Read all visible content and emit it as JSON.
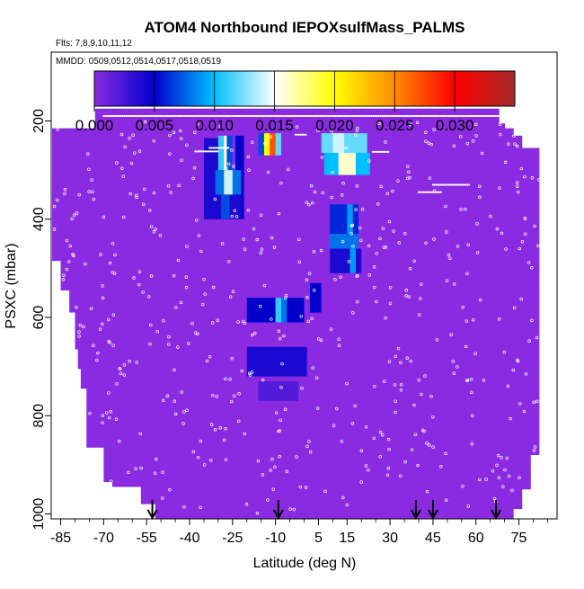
{
  "chart_data": {
    "type": "heatmap",
    "title": "ATOM4 Northbound IEPOXsulfMass_PALMS",
    "flights_label": "Flts: 7,8,9,10,11,12",
    "dates_label": "MMDD: 0509,0512,0514,0517,0518,0519",
    "xlabel": "Latitude (deg N)",
    "ylabel": "PSXC (mbar)",
    "xlim": [
      -88,
      88
    ],
    "ylim": [
      1010,
      60
    ],
    "x_ticks": [
      -85,
      -70,
      -55,
      -40,
      -25,
      -10,
      5,
      15,
      30,
      45,
      60,
      75
    ],
    "x_minor_ticks": [
      -80,
      -75,
      -65,
      -60,
      -50,
      -45,
      -35,
      -30,
      -20,
      -15,
      -5,
      0,
      10,
      20,
      25,
      35,
      40,
      50,
      55,
      65,
      70,
      80,
      85
    ],
    "y_ticks": [
      200,
      400,
      600,
      800,
      1000
    ],
    "colorbar": {
      "range": [
        0,
        0.035
      ],
      "tick_values": [
        0.0,
        0.005,
        0.01,
        0.015,
        0.02,
        0.025,
        0.03
      ],
      "tick_labels": [
        "0.000",
        "0.005",
        "0.010",
        "0.015",
        "0.020",
        "0.025",
        "0.030"
      ],
      "colors": [
        "#8A2BE2",
        "#0000CD",
        "#00BFFF",
        "#FFFFFF",
        "#FFFF00",
        "#FF8C00",
        "#FF0000",
        "#A52A2A"
      ]
    },
    "background_value": 0.0,
    "coverage": [
      {
        "lat": [
          -88,
          -85
        ],
        "p": [
          215,
          485
        ]
      },
      {
        "lat": [
          -85,
          -82
        ],
        "p": [
          215,
          545
        ]
      },
      {
        "lat": [
          -82,
          -80
        ],
        "p": [
          215,
          590
        ]
      },
      {
        "lat": [
          -80,
          -79
        ],
        "p": [
          215,
          665
        ]
      },
      {
        "lat": [
          -79,
          -78
        ],
        "p": [
          215,
          705
        ]
      },
      {
        "lat": [
          -78,
          -76
        ],
        "p": [
          215,
          745
        ]
      },
      {
        "lat": [
          -76,
          -73
        ],
        "p": [
          215,
          865
        ]
      },
      {
        "lat": [
          -73,
          -70
        ],
        "p": [
          175,
          865
        ]
      },
      {
        "lat": [
          -70,
          -67
        ],
        "p": [
          175,
          935
        ]
      },
      {
        "lat": [
          -67,
          -57
        ],
        "p": [
          175,
          945
        ]
      },
      {
        "lat": [
          -57,
          -52
        ],
        "p": [
          175,
          980
        ]
      },
      {
        "lat": [
          -52,
          68
        ],
        "p": [
          175,
          1010
        ]
      },
      {
        "lat": [
          68,
          70
        ],
        "p": [
          205,
          1010
        ]
      },
      {
        "lat": [
          70,
          73
        ],
        "p": [
          215,
          1010
        ]
      },
      {
        "lat": [
          73,
          76
        ],
        "p": [
          230,
          990
        ]
      },
      {
        "lat": [
          76,
          79
        ],
        "p": [
          255,
          950
        ]
      },
      {
        "lat": [
          79,
          82
        ],
        "p": [
          255,
          880
        ]
      }
    ],
    "cells": [
      {
        "lat": [
          -35,
          -30
        ],
        "p": [
          235,
          400
        ],
        "v": 0.004
      },
      {
        "lat": [
          -30,
          -28
        ],
        "p": [
          230,
          300
        ],
        "v": 0.011
      },
      {
        "lat": [
          -28,
          -27
        ],
        "p": [
          230,
          300
        ],
        "v": 0.016
      },
      {
        "lat": [
          -27,
          -25
        ],
        "p": [
          230,
          300
        ],
        "v": 0.007
      },
      {
        "lat": [
          -24,
          -21
        ],
        "p": [
          230,
          400
        ],
        "v": 0.005
      },
      {
        "lat": [
          -31,
          -22
        ],
        "p": [
          300,
          350
        ],
        "v": 0.008
      },
      {
        "lat": [
          -28,
          -25
        ],
        "p": [
          300,
          350
        ],
        "v": 0.014
      },
      {
        "lat": [
          -31,
          -22
        ],
        "p": [
          350,
          400
        ],
        "v": 0.004
      },
      {
        "lat": [
          -29,
          -26
        ],
        "p": [
          350,
          400
        ],
        "v": 0.007
      },
      {
        "lat": [
          -14,
          -12
        ],
        "p": [
          225,
          270
        ],
        "v": 0.02
      },
      {
        "lat": [
          -12,
          -10
        ],
        "p": [
          225,
          270
        ],
        "v": 0.027
      },
      {
        "lat": [
          -16,
          -14
        ],
        "p": [
          225,
          270
        ],
        "v": 0.007
      },
      {
        "lat": [
          -10,
          -8
        ],
        "p": [
          225,
          270
        ],
        "v": 0.012
      },
      {
        "lat": [
          6,
          22
        ],
        "p": [
          225,
          265
        ],
        "v": 0.012
      },
      {
        "lat": [
          10,
          14
        ],
        "p": [
          225,
          265
        ],
        "v": 0.014
      },
      {
        "lat": [
          7,
          23
        ],
        "p": [
          265,
          310
        ],
        "v": 0.01
      },
      {
        "lat": [
          12,
          18
        ],
        "p": [
          265,
          310
        ],
        "v": 0.016
      },
      {
        "lat": [
          9,
          19
        ],
        "p": [
          370,
          430
        ],
        "v": 0.006
      },
      {
        "lat": [
          15,
          17
        ],
        "p": [
          370,
          430
        ],
        "v": 0.009
      },
      {
        "lat": [
          9,
          19
        ],
        "p": [
          430,
          460
        ],
        "v": 0.008
      },
      {
        "lat": [
          9,
          20
        ],
        "p": [
          460,
          510
        ],
        "v": 0.004
      },
      {
        "lat": [
          16,
          18
        ],
        "p": [
          460,
          510
        ],
        "v": 0.009
      },
      {
        "lat": [
          -20,
          0
        ],
        "p": [
          560,
          610
        ],
        "v": 0.005
      },
      {
        "lat": [
          -10,
          -8
        ],
        "p": [
          560,
          610
        ],
        "v": 0.011
      },
      {
        "lat": [
          -8,
          -6
        ],
        "p": [
          560,
          610
        ],
        "v": 0.008
      },
      {
        "lat": [
          2,
          6
        ],
        "p": [
          530,
          590
        ],
        "v": 0.005
      },
      {
        "lat": [
          -20,
          1
        ],
        "p": [
          660,
          720
        ],
        "v": 0.004
      },
      {
        "lat": [
          -16,
          -2
        ],
        "p": [
          730,
          770
        ],
        "v": 0.002
      }
    ],
    "track_segments": [
      {
        "lat": [
          -70,
          80
        ],
        "p": 190
      },
      {
        "lat": [
          -33,
          -26
        ],
        "p": 255
      },
      {
        "lat": [
          -38,
          -30
        ],
        "p": 262
      },
      {
        "lat": [
          -3,
          1
        ],
        "p": 228
      },
      {
        "lat": [
          24,
          30
        ],
        "p": 263
      },
      {
        "lat": [
          45,
          58
        ],
        "p": 330
      },
      {
        "lat": [
          40,
          48
        ],
        "p": 345
      },
      {
        "lat": [
          72,
          78
        ],
        "p": 210
      },
      {
        "lat": [
          -88,
          -75
        ],
        "p": 210
      }
    ],
    "arrows_lat": [
      -53,
      -9,
      39,
      45,
      67
    ]
  }
}
